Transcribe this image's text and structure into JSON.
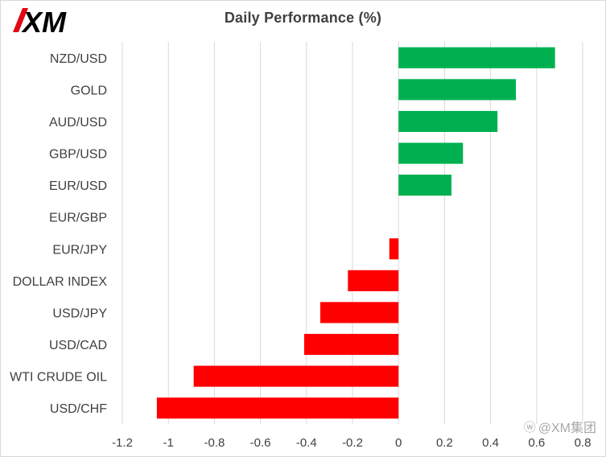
{
  "brand": {
    "logo_text": "XM",
    "logo_color": "#000000",
    "accent_color": "#e30613"
  },
  "chart_data": {
    "type": "bar",
    "orientation": "horizontal",
    "title": "Daily Performance (%)",
    "categories": [
      "NZD/USD",
      "GOLD",
      "AUD/USD",
      "GBP/USD",
      "EUR/USD",
      "EUR/GBP",
      "EUR/JPY",
      "DOLLAR INDEX",
      "USD/JPY",
      "USD/CAD",
      "WTI CRUDE OIL",
      "USD/CHF"
    ],
    "values": [
      0.68,
      0.51,
      0.43,
      0.28,
      0.23,
      0.0,
      -0.04,
      -0.22,
      -0.34,
      -0.41,
      -0.89,
      -1.05
    ],
    "xlim": [
      -1.2,
      0.8
    ],
    "xticks": [
      -1.2,
      -1,
      -0.8,
      -0.6,
      -0.4,
      -0.2,
      0,
      0.2,
      0.4,
      0.6,
      0.8
    ],
    "xtick_labels": [
      "-1.2",
      "-1",
      "-0.8",
      "-0.6",
      "-0.4",
      "-0.2",
      "0",
      "0.2",
      "0.4",
      "0.6",
      "0.8"
    ],
    "grid": "vertical",
    "legend": "none",
    "positive_color": "#00b050",
    "negative_color": "#ff0000",
    "gridline_color": "#d9d9d9"
  },
  "watermark": {
    "text": "@XM集团",
    "icon": "weibo-icon"
  }
}
